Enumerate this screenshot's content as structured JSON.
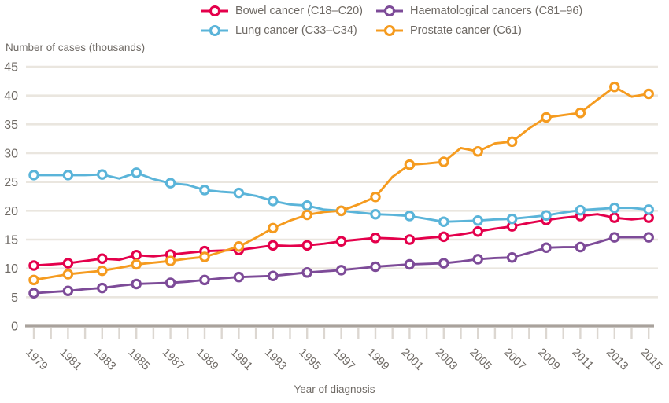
{
  "chart_data": {
    "type": "line",
    "title": "",
    "ylabel": "Number of cases (thousands)",
    "xlabel": "Year of diagnosis",
    "ylim": [
      0,
      45
    ],
    "yticks": [
      0,
      5,
      10,
      15,
      20,
      25,
      30,
      35,
      40,
      45
    ],
    "grid": "horizontal",
    "legend_position": "top",
    "marker_every": 2,
    "x_label_every": 2,
    "x": [
      1979,
      1980,
      1981,
      1982,
      1983,
      1984,
      1985,
      1986,
      1987,
      1988,
      1989,
      1990,
      1991,
      1992,
      1993,
      1994,
      1995,
      1996,
      1997,
      1998,
      1999,
      2000,
      2001,
      2002,
      2003,
      2004,
      2005,
      2006,
      2007,
      2008,
      2009,
      2010,
      2011,
      2012,
      2013,
      2014,
      2015
    ],
    "xtick_labels": [
      "1979",
      "1981",
      "1983",
      "1985",
      "1987",
      "1989",
      "1991",
      "1993",
      "1995",
      "1997",
      "1999",
      "2001",
      "2003",
      "2005",
      "2007",
      "2009",
      "2011",
      "2013",
      "2015"
    ],
    "series": [
      {
        "id": "bowel",
        "name": "Bowel cancer (C18–C20)",
        "color": "#e4004b",
        "values": [
          10.5,
          10.7,
          10.9,
          11.3,
          11.7,
          11.5,
          12.3,
          12.1,
          12.4,
          12.7,
          13.0,
          13.1,
          13.2,
          13.6,
          14.0,
          13.9,
          14.0,
          14.3,
          14.7,
          15.0,
          15.3,
          15.2,
          15.0,
          15.3,
          15.5,
          15.9,
          16.4,
          16.9,
          17.3,
          17.9,
          18.4,
          18.8,
          19.1,
          19.4,
          18.8,
          18.5,
          18.8
        ]
      },
      {
        "id": "lung",
        "name": "Lung cancer (C33–C34)",
        "color": "#5ab4d9",
        "values": [
          26.2,
          26.2,
          26.2,
          26.2,
          26.3,
          25.6,
          26.6,
          25.5,
          24.8,
          24.5,
          23.6,
          23.3,
          23.1,
          22.6,
          21.7,
          21.1,
          20.9,
          20.2,
          20.0,
          19.7,
          19.4,
          19.3,
          19.1,
          18.6,
          18.1,
          18.2,
          18.3,
          18.5,
          18.6,
          18.9,
          19.2,
          19.7,
          20.1,
          20.3,
          20.5,
          20.5,
          20.2
        ]
      },
      {
        "id": "haematological",
        "name": "Haematological cancers (C81–96)",
        "color": "#7d4b98",
        "values": [
          5.7,
          5.9,
          6.1,
          6.4,
          6.6,
          7.0,
          7.3,
          7.4,
          7.5,
          7.7,
          8.0,
          8.3,
          8.5,
          8.6,
          8.7,
          9.0,
          9.3,
          9.5,
          9.7,
          10.0,
          10.3,
          10.5,
          10.7,
          10.8,
          10.9,
          11.2,
          11.6,
          11.8,
          11.9,
          12.7,
          13.6,
          13.7,
          13.7,
          14.5,
          15.4,
          15.4,
          15.4
        ]
      },
      {
        "id": "prostate",
        "name": "Prostate cancer (C61)",
        "color": "#f59b1f",
        "values": [
          8.0,
          8.5,
          9.0,
          9.3,
          9.6,
          10.1,
          10.7,
          11.0,
          11.3,
          11.7,
          12.0,
          12.9,
          13.8,
          15.3,
          17.0,
          18.3,
          19.3,
          19.8,
          20.0,
          21.1,
          22.4,
          25.9,
          28.0,
          28.2,
          28.5,
          30.9,
          30.3,
          31.7,
          32.0,
          34.3,
          36.2,
          36.6,
          37.0,
          39.3,
          41.5,
          39.8,
          40.3
        ]
      }
    ],
    "legend_order": [
      "bowel",
      "haematological",
      "lung",
      "prostate"
    ],
    "colors": {
      "background": "#ffffff",
      "grid": "#eae6df",
      "axis": "#a9a29c",
      "tick": "#dcd7d1",
      "text": "#6f6a65",
      "marker_fill": "#ffffff"
    }
  }
}
